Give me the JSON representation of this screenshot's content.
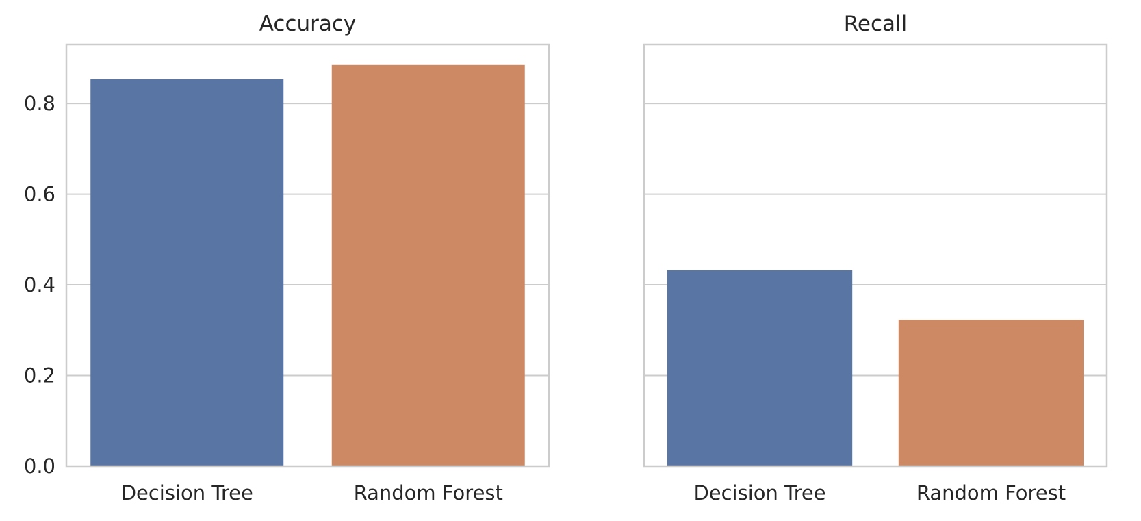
{
  "chart_data": [
    {
      "type": "bar",
      "title": "Accuracy",
      "categories": [
        "Decision Tree",
        "Random Forest"
      ],
      "values": [
        0.853,
        0.885
      ],
      "colors": [
        "#5975a4",
        "#cc8963"
      ],
      "ylim": [
        0,
        0.93
      ],
      "yticks": [
        0.0,
        0.2,
        0.4,
        0.6,
        0.8
      ],
      "ytick_labels": [
        "0.0",
        "0.2",
        "0.4",
        "0.6",
        "0.8"
      ],
      "grid": true
    },
    {
      "type": "bar",
      "title": "Recall",
      "categories": [
        "Decision Tree",
        "Random Forest"
      ],
      "values": [
        0.432,
        0.323
      ],
      "colors": [
        "#5975a4",
        "#cc8963"
      ],
      "ylim": [
        0,
        0.93
      ],
      "yticks": [
        0.0,
        0.2,
        0.4,
        0.6,
        0.8
      ],
      "ytick_labels": [],
      "grid": true
    }
  ]
}
